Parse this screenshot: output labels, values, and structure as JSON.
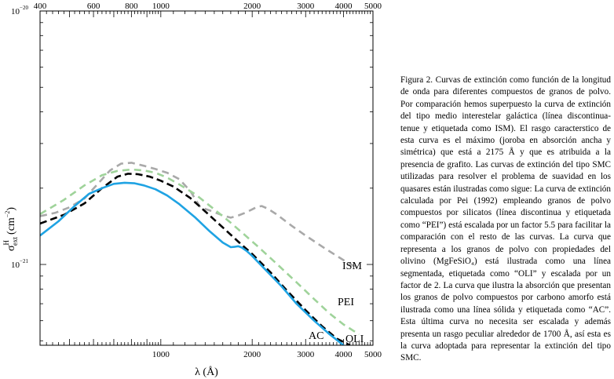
{
  "chart_data": {
    "type": "line",
    "xscale": "log",
    "yscale": "log",
    "xlim": [
      400,
      5000
    ],
    "ylim": [
      4.8e-22,
      1e-20
    ],
    "xlabel": "λ (Å)",
    "ylabel": "σ",
    "ylabel_sup": "H",
    "ylabel_sub": "ext",
    "ylabel_unit": "(cm",
    "ylabel_unit_exp": "−2",
    "ylabel_unit_close": ")",
    "x_ticks_bottom": [
      "1000",
      "2000",
      "3000",
      "4000",
      "5000"
    ],
    "x_ticks_top": [
      "400",
      "600",
      "800",
      "1000",
      "2000",
      "3000",
      "4000",
      "5000"
    ],
    "y_ticks": [
      {
        "base": "10",
        "exp": "−20"
      },
      {
        "base": "10",
        "exp": "−21"
      }
    ],
    "series": [
      {
        "name": "ISM",
        "style": "dashed",
        "color": "#a9a9a9",
        "x": [
          400,
          450,
          500,
          560,
          620,
          680,
          740,
          800,
          880,
          960,
          1050,
          1150,
          1250,
          1350,
          1480,
          1600,
          1700,
          1800,
          1900,
          2000,
          2080,
          2150,
          2250,
          2400,
          2700,
          3000,
          3500,
          4000,
          4500
        ],
        "y": [
          1.55e-21,
          1.6e-21,
          1.68e-21,
          1.82e-21,
          2.08e-21,
          2.35e-21,
          2.5e-21,
          2.52e-21,
          2.45e-21,
          2.38e-21,
          2.3e-21,
          2.17e-21,
          1.95e-21,
          1.68e-21,
          1.62e-21,
          1.56e-21,
          1.53e-21,
          1.56e-21,
          1.6e-21,
          1.65e-21,
          1.69e-21,
          1.7e-21,
          1.66e-21,
          1.58e-21,
          1.42e-21,
          1.3e-21,
          1.15e-21,
          1.04e-21,
          9.6e-22
        ]
      },
      {
        "name": "PEI",
        "style": "dashed",
        "color": "#9fd39a",
        "x": [
          400,
          480,
          560,
          640,
          720,
          800,
          880,
          960,
          1050,
          1150,
          1300,
          1500,
          1700,
          1900,
          2100,
          2400,
          2800,
          3200,
          3600,
          4000,
          4500
        ],
        "y": [
          1.58e-21,
          1.8e-21,
          2.05e-21,
          2.25e-21,
          2.34e-21,
          2.37e-21,
          2.35e-21,
          2.3e-21,
          2.2e-21,
          2.07e-21,
          1.89e-21,
          1.65e-21,
          1.46e-21,
          1.3e-21,
          1.17e-21,
          1.01e-21,
          8.5e-22,
          7.3e-22,
          6.4e-22,
          5.8e-22,
          5.3e-22
        ]
      },
      {
        "name": "OLI",
        "style": "dashed",
        "color": "#000000",
        "x": [
          400,
          480,
          560,
          640,
          720,
          780,
          840,
          920,
          1000,
          1100,
          1250,
          1400,
          1600,
          1800,
          2000,
          2300,
          2600,
          3000,
          3400,
          3800,
          4200
        ],
        "y": [
          1.45e-21,
          1.57e-21,
          1.74e-21,
          2e-21,
          2.22e-21,
          2.28e-21,
          2.27e-21,
          2.22e-21,
          2.14e-21,
          2.03e-21,
          1.83e-21,
          1.62e-21,
          1.4e-21,
          1.23e-21,
          1.1e-21,
          9.3e-22,
          7.9e-22,
          6.6e-22,
          5.7e-22,
          5.1e-22,
          4.8e-22
        ]
      },
      {
        "name": "AC",
        "style": "solid",
        "color": "#1fa3e3",
        "x": [
          400,
          460,
          520,
          580,
          640,
          700,
          760,
          820,
          880,
          960,
          1050,
          1150,
          1300,
          1450,
          1600,
          1700,
          1760,
          1800,
          1850,
          1920,
          2000,
          2200,
          2500,
          2800,
          3200,
          3600,
          4000
        ],
        "y": [
          1.3e-21,
          1.48e-21,
          1.7e-21,
          1.9e-21,
          2e-21,
          2.08e-21,
          2.1e-21,
          2.09e-21,
          2.05e-21,
          1.98e-21,
          1.87e-21,
          1.73e-21,
          1.53e-21,
          1.35e-21,
          1.22e-21,
          1.17e-21,
          1.175e-21,
          1.18e-21,
          1.165e-21,
          1.13e-21,
          1.08e-21,
          9.6e-22,
          8.2e-22,
          7e-22,
          6e-22,
          5.3e-22,
          4.8e-22
        ]
      }
    ],
    "annotations": [
      {
        "text": "ISM",
        "series": "ISM"
      },
      {
        "text": "PEI",
        "series": "PEI"
      },
      {
        "text": "AC",
        "series": "AC"
      },
      {
        "text": "OLI",
        "series": "OLI"
      }
    ]
  },
  "caption": "Figura 2. Curvas de extinción como función de la longitud de onda para diferentes compuestos de granos de polvo. Por comparación hemos superpuesto la curva de extinción del tipo medio interestelar galáctica (línea discontinua-tenue y etiquetada como ISM). El rasgo caracterstico de esta curva es el máximo (joroba en absorción ancha y simétrica) que está a 2175 Å y que es atribuida a la presencia de grafito. Las curvas de extinción del tipo SMC utilizadas para resolver el problema de suavidad en los quasares están ilustradas como sigue: La curva de extinción calculada por Pei (1992) empleando granos de polvo compuestos por silicatos (línea discontinua y etiquetada como “PEI”) está escalada por un factor 5.5 para facilitar la comparación con el resto de las curvas. La curva que representa a los granos de polvo con propiedades del olivino (MgFeSiO₄) está ilustrada como una línea segmentada, etiquetada como “OLI” y escalada por un factor de 2. La curva que ilustra la absorción que presentan los granos de polvo compuestos por carbono amorfo está ilustrada como una línea sólida y etiquetada como “AC”. Esta última curva no necesita ser escalada y además presenta un rasgo peculiar alrededor de 1700 Å, así esta es la curva adoptada para representar la extinción del tipo SMC."
}
